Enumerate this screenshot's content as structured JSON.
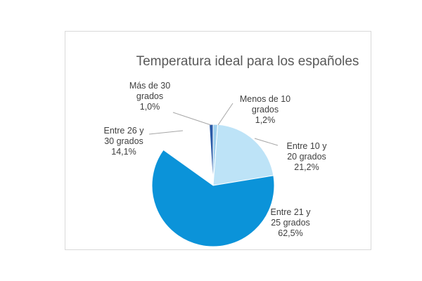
{
  "chart_data": {
    "type": "pie",
    "title": "Temperatura ideal para los españoles",
    "categories": [
      "Menos de 10 grados",
      "Entre 10 y 20 grados",
      "Entre 21 y 25 grados",
      "Entre 26 y 30 grados",
      "Más de 30 grados"
    ],
    "values": [
      1.2,
      21.2,
      62.5,
      14.1,
      1.0
    ],
    "value_labels": [
      "1,2%",
      "21,2%",
      "62,5%",
      "14,1%",
      "1,0%"
    ],
    "label_lines": [
      [
        "Menos de 10",
        "grados",
        "1,2%"
      ],
      [
        "Entre 10 y",
        "20 grados",
        "21,2%"
      ],
      [
        "Entre 21 y",
        "25 grados",
        "62,5%"
      ],
      [
        "Entre 26 y",
        "30 grados",
        "14,1%"
      ],
      [
        "Más de 30",
        "grados",
        "1,0%"
      ]
    ],
    "colors": [
      "#9fd0ee",
      "#bde3f7",
      "#0b93d9",
      "#ffffff",
      "#2a5aa8"
    ],
    "exploded_slice": "Entre 26 y 30 grados",
    "legend": "none",
    "start_angle_deg": 0,
    "direction": "clockwise"
  }
}
